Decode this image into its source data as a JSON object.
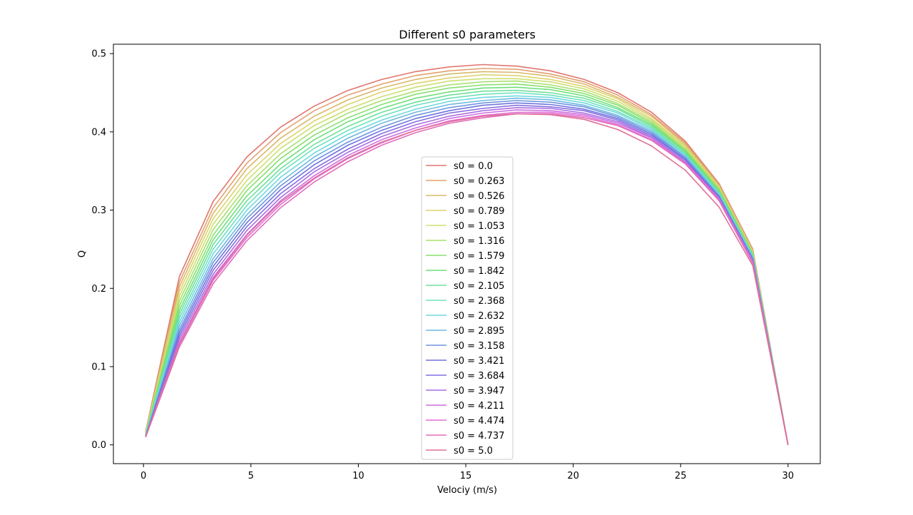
{
  "chart_data": {
    "type": "line",
    "title": "Different s0 parameters",
    "xlabel": "Velociy (m/s)",
    "ylabel": "Q",
    "xlim": [
      -1.4,
      31.5
    ],
    "ylim": [
      -0.024,
      0.512
    ],
    "xticks": [
      0,
      5,
      10,
      15,
      20,
      25,
      30
    ],
    "yticks": [
      0.0,
      0.1,
      0.2,
      0.3,
      0.4,
      0.5
    ],
    "xtick_labels": [
      "0",
      "5",
      "10",
      "15",
      "20",
      "25",
      "30"
    ],
    "ytick_labels": [
      "0.0",
      "0.1",
      "0.2",
      "0.3",
      "0.4",
      "0.5"
    ],
    "grid": false,
    "legend_position": "center-bottom",
    "x": [
      0.1,
      1.67,
      3.24,
      4.81,
      6.38,
      7.95,
      9.52,
      11.09,
      12.66,
      14.23,
      15.8,
      17.37,
      18.94,
      20.51,
      22.08,
      23.65,
      25.22,
      26.79,
      28.36,
      30.0
    ],
    "series": [
      {
        "name": "s0 = 0.0",
        "color": "#e0766e",
        "values": [
          0.017,
          0.215,
          0.311,
          0.368,
          0.406,
          0.433,
          0.453,
          0.467,
          0.477,
          0.483,
          0.486,
          0.484,
          0.478,
          0.467,
          0.45,
          0.425,
          0.388,
          0.334,
          0.25,
          0.0
        ]
      },
      {
        "name": "s0 = 0.263",
        "color": "#e3a06e",
        "values": [
          0.016,
          0.208,
          0.303,
          0.36,
          0.399,
          0.427,
          0.447,
          0.461,
          0.472,
          0.478,
          0.481,
          0.48,
          0.474,
          0.464,
          0.447,
          0.422,
          0.386,
          0.333,
          0.249,
          0.0
        ]
      },
      {
        "name": "s0 = 0.526",
        "color": "#d9b86a",
        "values": [
          0.016,
          0.202,
          0.296,
          0.353,
          0.392,
          0.42,
          0.441,
          0.456,
          0.467,
          0.474,
          0.477,
          0.476,
          0.471,
          0.461,
          0.444,
          0.42,
          0.384,
          0.331,
          0.248,
          0.0
        ]
      },
      {
        "name": "s0 = 0.789",
        "color": "#dfd36d",
        "values": [
          0.015,
          0.196,
          0.289,
          0.345,
          0.385,
          0.414,
          0.435,
          0.451,
          0.462,
          0.469,
          0.473,
          0.472,
          0.467,
          0.458,
          0.442,
          0.417,
          0.382,
          0.33,
          0.247,
          0.0
        ]
      },
      {
        "name": "s0 = 1.053",
        "color": "#cce06f",
        "values": [
          0.015,
          0.19,
          0.282,
          0.338,
          0.379,
          0.408,
          0.429,
          0.445,
          0.457,
          0.465,
          0.468,
          0.468,
          0.464,
          0.455,
          0.439,
          0.415,
          0.38,
          0.328,
          0.246,
          0.0
        ]
      },
      {
        "name": "s0 = 1.316",
        "color": "#a8e06f",
        "values": [
          0.014,
          0.184,
          0.275,
          0.331,
          0.372,
          0.402,
          0.424,
          0.44,
          0.452,
          0.46,
          0.464,
          0.465,
          0.46,
          0.452,
          0.436,
          0.413,
          0.378,
          0.327,
          0.245,
          0.0
        ]
      },
      {
        "name": "s0 = 1.579",
        "color": "#86e06e",
        "values": [
          0.014,
          0.178,
          0.268,
          0.325,
          0.366,
          0.396,
          0.418,
          0.435,
          0.448,
          0.456,
          0.46,
          0.461,
          0.457,
          0.449,
          0.434,
          0.411,
          0.376,
          0.326,
          0.244,
          0.0
        ]
      },
      {
        "name": "s0 = 1.842",
        "color": "#6ee07a",
        "values": [
          0.013,
          0.172,
          0.262,
          0.318,
          0.359,
          0.39,
          0.413,
          0.43,
          0.443,
          0.451,
          0.456,
          0.457,
          0.454,
          0.446,
          0.431,
          0.409,
          0.375,
          0.324,
          0.243,
          0.0
        ]
      },
      {
        "name": "s0 = 2.105",
        "color": "#6ee09c",
        "values": [
          0.013,
          0.167,
          0.256,
          0.312,
          0.353,
          0.384,
          0.407,
          0.425,
          0.438,
          0.447,
          0.452,
          0.453,
          0.45,
          0.443,
          0.429,
          0.407,
          0.373,
          0.323,
          0.242,
          0.0
        ]
      },
      {
        "name": "s0 = 2.368",
        "color": "#6ee0bd",
        "values": [
          0.012,
          0.162,
          0.25,
          0.306,
          0.348,
          0.379,
          0.402,
          0.42,
          0.434,
          0.443,
          0.448,
          0.45,
          0.447,
          0.44,
          0.426,
          0.405,
          0.371,
          0.322,
          0.241,
          0.0
        ]
      },
      {
        "name": "s0 = 2.632",
        "color": "#6ed8e0",
        "values": [
          0.012,
          0.157,
          0.244,
          0.3,
          0.342,
          0.373,
          0.397,
          0.415,
          0.429,
          0.439,
          0.444,
          0.446,
          0.444,
          0.437,
          0.424,
          0.403,
          0.37,
          0.32,
          0.24,
          0.0
        ]
      },
      {
        "name": "s0 = 2.895",
        "color": "#6eb8e0",
        "values": [
          0.011,
          0.152,
          0.238,
          0.294,
          0.336,
          0.368,
          0.392,
          0.411,
          0.425,
          0.435,
          0.44,
          0.443,
          0.441,
          0.434,
          0.421,
          0.401,
          0.368,
          0.319,
          0.239,
          0.0
        ]
      },
      {
        "name": "s0 = 3.158",
        "color": "#6e96e0",
        "values": [
          0.011,
          0.147,
          0.233,
          0.289,
          0.331,
          0.363,
          0.387,
          0.406,
          0.421,
          0.431,
          0.437,
          0.44,
          0.438,
          0.432,
          0.419,
          0.399,
          0.367,
          0.318,
          0.238,
          0.0
        ]
      },
      {
        "name": "s0 = 3.421",
        "color": "#6e74e0",
        "values": [
          0.011,
          0.143,
          0.228,
          0.284,
          0.326,
          0.358,
          0.383,
          0.402,
          0.417,
          0.427,
          0.434,
          0.437,
          0.435,
          0.429,
          0.417,
          0.397,
          0.365,
          0.317,
          0.237,
          0.0
        ]
      },
      {
        "name": "s0 = 3.684",
        "color": "#866ee0",
        "values": [
          0.01,
          0.139,
          0.223,
          0.279,
          0.321,
          0.353,
          0.378,
          0.398,
          0.413,
          0.424,
          0.43,
          0.434,
          0.432,
          0.427,
          0.415,
          0.395,
          0.364,
          0.316,
          0.236,
          0.0
        ]
      },
      {
        "name": "s0 = 3.947",
        "color": "#a86ee0",
        "values": [
          0.01,
          0.135,
          0.218,
          0.274,
          0.316,
          0.349,
          0.374,
          0.394,
          0.409,
          0.42,
          0.427,
          0.431,
          0.43,
          0.424,
          0.413,
          0.393,
          0.362,
          0.315,
          0.235,
          0.0
        ]
      },
      {
        "name": "s0 = 4.211",
        "color": "#cc6ee0",
        "values": [
          0.01,
          0.131,
          0.214,
          0.269,
          0.312,
          0.344,
          0.37,
          0.39,
          0.405,
          0.417,
          0.424,
          0.428,
          0.427,
          0.422,
          0.411,
          0.392,
          0.361,
          0.314,
          0.234,
          0.0
        ]
      },
      {
        "name": "s0 = 4.474",
        "color": "#e06ed8",
        "values": [
          0.01,
          0.128,
          0.21,
          0.265,
          0.307,
          0.34,
          0.366,
          0.386,
          0.402,
          0.414,
          0.421,
          0.425,
          0.425,
          0.42,
          0.409,
          0.39,
          0.36,
          0.313,
          0.233,
          0.0
        ]
      },
      {
        "name": "s0 = 4.737",
        "color": "#e06eba",
        "values": [
          0.01,
          0.125,
          0.206,
          0.261,
          0.303,
          0.336,
          0.362,
          0.383,
          0.399,
          0.411,
          0.418,
          0.423,
          0.423,
          0.418,
          0.408,
          0.389,
          0.359,
          0.312,
          0.232,
          0.0
        ]
      },
      {
        "name": "s0 = 5.0",
        "color": "#e07098",
        "values": [
          0.01,
          0.13,
          0.212,
          0.268,
          0.31,
          0.341,
          0.367,
          0.387,
          0.402,
          0.413,
          0.42,
          0.423,
          0.422,
          0.416,
          0.403,
          0.382,
          0.351,
          0.304,
          0.229,
          0.0
        ]
      }
    ]
  }
}
